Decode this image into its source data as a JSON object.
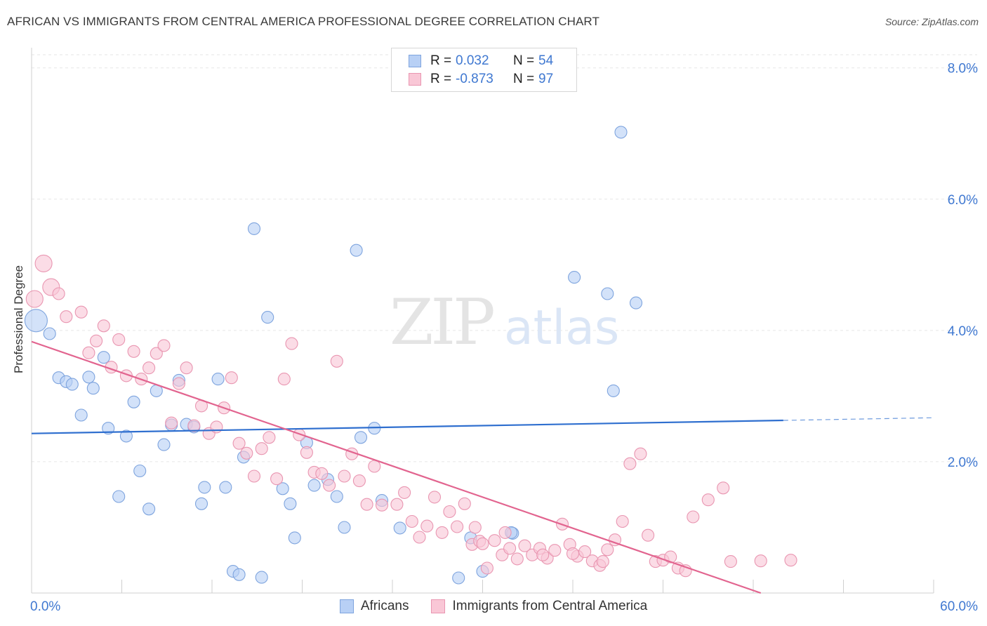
{
  "title": "AFRICAN VS IMMIGRANTS FROM CENTRAL AMERICA PROFESSIONAL DEGREE CORRELATION CHART",
  "source": "Source: ZipAtlas.com",
  "watermark": {
    "zip": "ZIP",
    "atlas": "atlas"
  },
  "legend": {
    "rows": [
      {
        "r_label": "R =",
        "r_value": "0.032",
        "n_label": "N =",
        "n_value": "54",
        "fill": "#b8d0f5",
        "stroke": "#7ea4de"
      },
      {
        "r_label": "R =",
        "r_value": "-0.873",
        "n_label": "N =",
        "n_value": "97",
        "fill": "#f9c7d6",
        "stroke": "#e996b1"
      }
    ]
  },
  "bottom_legend": [
    {
      "label": "Africans",
      "fill": "#b8d0f5",
      "stroke": "#7ea4de"
    },
    {
      "label": "Immigrants from Central America",
      "fill": "#f9c7d6",
      "stroke": "#e996b1"
    }
  ],
  "chart_data": {
    "type": "scatter",
    "title": "AFRICAN VS IMMIGRANTS FROM CENTRAL AMERICA PROFESSIONAL DEGREE CORRELATION CHART",
    "xlabel": "",
    "ylabel": "Professional Degree",
    "xlim": [
      0,
      60
    ],
    "ylim": [
      0,
      8.0
    ],
    "x_tick_labels": [
      {
        "value": 0,
        "label": "0.0%"
      },
      {
        "value": 60,
        "label": "60.0%"
      }
    ],
    "y_tick_labels": [
      {
        "value": 2,
        "label": "2.0%"
      },
      {
        "value": 4,
        "label": "4.0%"
      },
      {
        "value": 6,
        "label": "6.0%"
      },
      {
        "value": 8,
        "label": "8.0%"
      }
    ],
    "grid": true,
    "legend_position": "top-center",
    "series": [
      {
        "name": "Africans",
        "color": "#7ea4de",
        "fill": "#b8d0f5",
        "line_color": "#2f6fcf",
        "trend": {
          "x0": 0,
          "y0": 2.43,
          "x1": 50,
          "y1": 2.63,
          "dashed_to_x": 60,
          "dashed_to_y": 2.67
        },
        "points": [
          [
            0.3,
            4.15
          ],
          [
            1.2,
            3.95
          ],
          [
            1.8,
            3.28
          ],
          [
            2.3,
            3.22
          ],
          [
            2.7,
            3.18
          ],
          [
            3.3,
            2.71
          ],
          [
            3.8,
            3.29
          ],
          [
            4.1,
            3.12
          ],
          [
            4.8,
            3.59
          ],
          [
            5.1,
            2.51
          ],
          [
            5.8,
            1.47
          ],
          [
            6.3,
            2.39
          ],
          [
            6.8,
            2.91
          ],
          [
            7.2,
            1.86
          ],
          [
            7.8,
            1.28
          ],
          [
            8.3,
            3.08
          ],
          [
            8.8,
            2.26
          ],
          [
            9.3,
            2.56
          ],
          [
            9.8,
            3.24
          ],
          [
            10.3,
            2.57
          ],
          [
            10.8,
            2.53
          ],
          [
            11.3,
            1.36
          ],
          [
            11.5,
            1.61
          ],
          [
            12.4,
            3.26
          ],
          [
            12.9,
            1.61
          ],
          [
            13.4,
            0.33
          ],
          [
            13.8,
            0.28
          ],
          [
            14.1,
            2.07
          ],
          [
            14.8,
            5.55
          ],
          [
            15.3,
            0.24
          ],
          [
            15.7,
            4.2
          ],
          [
            16.7,
            1.59
          ],
          [
            17.2,
            1.36
          ],
          [
            17.5,
            0.84
          ],
          [
            18.3,
            2.29
          ],
          [
            18.8,
            1.64
          ],
          [
            19.7,
            1.73
          ],
          [
            20.3,
            1.47
          ],
          [
            20.8,
            1.0
          ],
          [
            21.6,
            5.22
          ],
          [
            21.9,
            2.37
          ],
          [
            22.8,
            2.51
          ],
          [
            23.3,
            1.41
          ],
          [
            24.5,
            0.99
          ],
          [
            28.4,
            0.23
          ],
          [
            29.2,
            0.84
          ],
          [
            30.0,
            0.33
          ],
          [
            32.0,
            0.91
          ],
          [
            36.1,
            4.81
          ],
          [
            38.3,
            4.56
          ],
          [
            38.7,
            3.08
          ],
          [
            39.2,
            7.02
          ],
          [
            40.2,
            4.42
          ],
          [
            31.9,
            0.92
          ]
        ]
      },
      {
        "name": "Immigrants from Central America",
        "color": "#e996b1",
        "fill": "#f9c7d6",
        "line_color": "#e2648f",
        "trend": {
          "x0": 0,
          "y0": 3.83,
          "x1": 48.5,
          "y1": 0.0
        },
        "points": [
          [
            0.2,
            4.48
          ],
          [
            0.8,
            5.02
          ],
          [
            1.3,
            4.66
          ],
          [
            1.8,
            4.56
          ],
          [
            2.3,
            4.21
          ],
          [
            3.3,
            4.28
          ],
          [
            3.8,
            3.66
          ],
          [
            4.3,
            3.84
          ],
          [
            4.8,
            4.07
          ],
          [
            5.3,
            3.44
          ],
          [
            5.8,
            3.86
          ],
          [
            6.3,
            3.31
          ],
          [
            6.8,
            3.68
          ],
          [
            7.3,
            3.26
          ],
          [
            7.8,
            3.43
          ],
          [
            8.3,
            3.65
          ],
          [
            8.8,
            3.77
          ],
          [
            9.3,
            2.59
          ],
          [
            9.8,
            3.19
          ],
          [
            10.3,
            3.43
          ],
          [
            10.8,
            2.55
          ],
          [
            11.3,
            2.85
          ],
          [
            11.8,
            2.43
          ],
          [
            12.3,
            2.53
          ],
          [
            12.8,
            2.82
          ],
          [
            13.3,
            3.28
          ],
          [
            13.8,
            2.28
          ],
          [
            14.3,
            2.13
          ],
          [
            14.8,
            1.78
          ],
          [
            15.3,
            2.2
          ],
          [
            15.8,
            2.37
          ],
          [
            16.3,
            1.74
          ],
          [
            16.8,
            3.26
          ],
          [
            17.3,
            3.8
          ],
          [
            17.8,
            2.41
          ],
          [
            18.3,
            2.14
          ],
          [
            18.8,
            1.84
          ],
          [
            19.3,
            1.82
          ],
          [
            19.8,
            1.64
          ],
          [
            20.3,
            3.53
          ],
          [
            20.8,
            1.78
          ],
          [
            21.3,
            2.12
          ],
          [
            21.8,
            1.71
          ],
          [
            22.3,
            1.35
          ],
          [
            22.8,
            1.93
          ],
          [
            23.3,
            1.34
          ],
          [
            24.3,
            1.35
          ],
          [
            24.8,
            1.53
          ],
          [
            25.3,
            1.09
          ],
          [
            25.8,
            0.85
          ],
          [
            26.3,
            1.02
          ],
          [
            26.8,
            1.46
          ],
          [
            27.3,
            0.92
          ],
          [
            27.8,
            1.24
          ],
          [
            28.3,
            1.01
          ],
          [
            28.8,
            1.36
          ],
          [
            29.3,
            0.74
          ],
          [
            29.8,
            0.79
          ],
          [
            30.3,
            0.38
          ],
          [
            30.8,
            0.8
          ],
          [
            31.3,
            0.58
          ],
          [
            31.8,
            0.68
          ],
          [
            32.3,
            0.52
          ],
          [
            32.8,
            0.72
          ],
          [
            33.3,
            0.58
          ],
          [
            33.8,
            0.68
          ],
          [
            34.3,
            0.53
          ],
          [
            34.8,
            0.65
          ],
          [
            35.3,
            1.05
          ],
          [
            35.8,
            0.74
          ],
          [
            36.3,
            0.56
          ],
          [
            36.8,
            0.63
          ],
          [
            37.3,
            0.49
          ],
          [
            37.8,
            0.42
          ],
          [
            38.3,
            0.66
          ],
          [
            38.8,
            0.81
          ],
          [
            39.3,
            1.09
          ],
          [
            39.8,
            1.97
          ],
          [
            40.5,
            2.12
          ],
          [
            41.0,
            0.88
          ],
          [
            41.5,
            0.48
          ],
          [
            42.0,
            0.5
          ],
          [
            42.5,
            0.55
          ],
          [
            43.0,
            0.38
          ],
          [
            43.5,
            0.34
          ],
          [
            44.0,
            1.16
          ],
          [
            45.0,
            1.42
          ],
          [
            46.0,
            1.6
          ],
          [
            46.5,
            0.48
          ],
          [
            48.5,
            0.49
          ],
          [
            50.5,
            0.5
          ],
          [
            29.5,
            1.0
          ],
          [
            30.0,
            0.75
          ],
          [
            31.5,
            0.92
          ],
          [
            34.0,
            0.58
          ],
          [
            36.0,
            0.6
          ],
          [
            38.0,
            0.48
          ]
        ]
      }
    ]
  }
}
